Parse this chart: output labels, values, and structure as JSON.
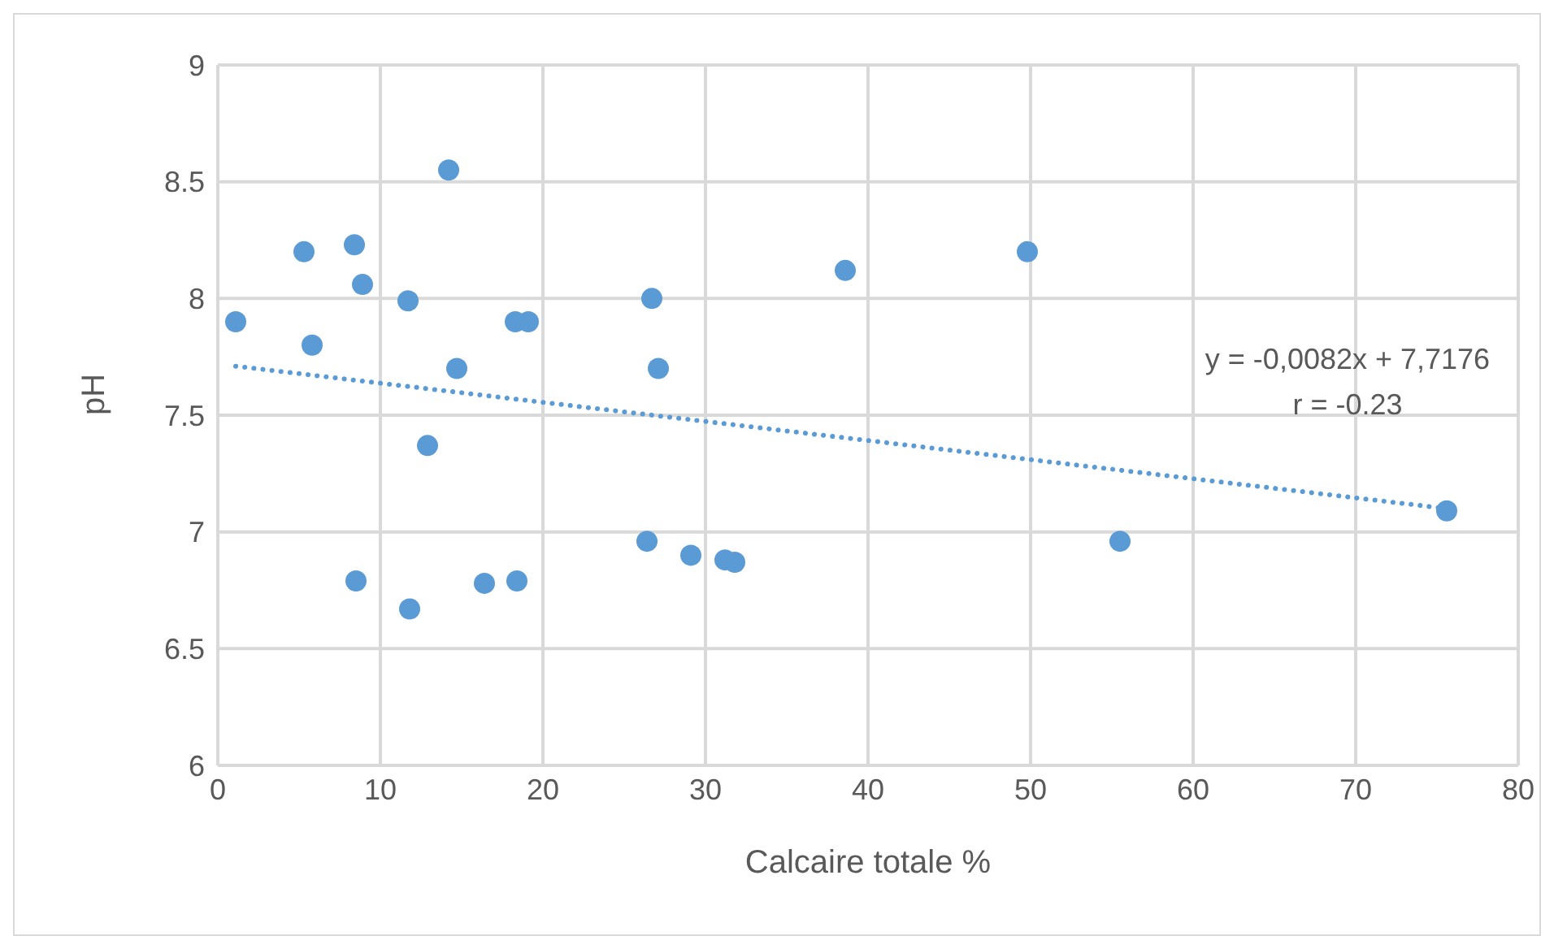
{
  "chart_data": {
    "type": "scatter",
    "xlabel": "Calcaire totale %",
    "ylabel": "pH",
    "xlim": [
      0,
      80
    ],
    "xticks": [
      0,
      10,
      20,
      30,
      40,
      50,
      60,
      70,
      80
    ],
    "ylim": [
      6,
      9
    ],
    "yticks": [
      6,
      6.5,
      7,
      7.5,
      8,
      8.5,
      9
    ],
    "grid": true,
    "marker": "circle",
    "series": [
      {
        "type": "scatter",
        "color": "#5b9bd5",
        "x": [
          14.2,
          5.3,
          8.4,
          8.9,
          11.7,
          38.6,
          1.1,
          5.8,
          18.3,
          19.1,
          26.7,
          14.7,
          27.1,
          12.9,
          26.4,
          29.1,
          31.2,
          31.8,
          8.5,
          11.8,
          16.4,
          18.4,
          49.8,
          55.5,
          75.6
        ],
        "values": [
          8.55,
          8.2,
          8.23,
          8.06,
          7.99,
          8.12,
          7.9,
          7.8,
          7.9,
          7.9,
          8.0,
          7.7,
          7.7,
          7.37,
          6.96,
          6.9,
          6.88,
          6.87,
          6.79,
          6.67,
          6.78,
          6.79,
          8.2,
          6.96,
          7.09
        ]
      },
      {
        "type": "line",
        "color": "#5b9bd5",
        "line_style": "dotted",
        "marker": "none",
        "x": [
          1.1,
          75.6
        ],
        "values": [
          7.71,
          7.1
        ]
      }
    ],
    "annotations": [
      "y = -0,0082x + 7,7176",
      "r = -0.23"
    ]
  }
}
